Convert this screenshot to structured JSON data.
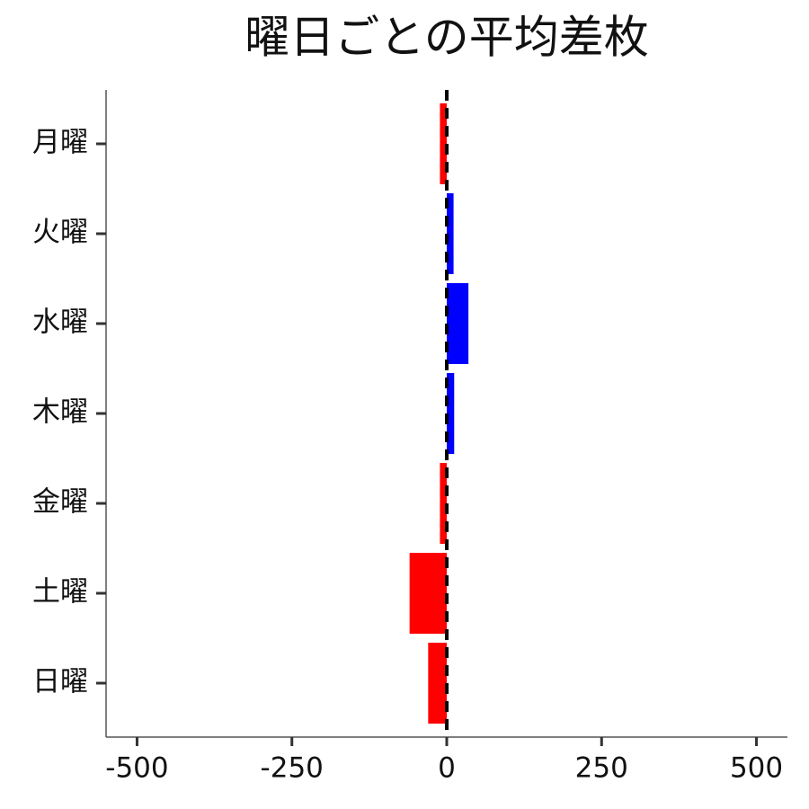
{
  "chart_data": {
    "type": "barh",
    "title": "曜日ごとの平均差枚",
    "categories": [
      "月曜",
      "火曜",
      "水曜",
      "木曜",
      "金曜",
      "土曜",
      "日曜"
    ],
    "values": [
      -11,
      11,
      35,
      12,
      -11,
      -60,
      -30
    ],
    "colors": [
      "#ff0000",
      "#0000ff",
      "#0000ff",
      "#0000ff",
      "#ff0000",
      "#ff0000",
      "#ff0000"
    ],
    "xlim": [
      -550,
      550
    ],
    "xticks": [
      -500,
      -250,
      0,
      250,
      500
    ],
    "vline": 0,
    "vline_style": "dashed",
    "grid": false
  }
}
